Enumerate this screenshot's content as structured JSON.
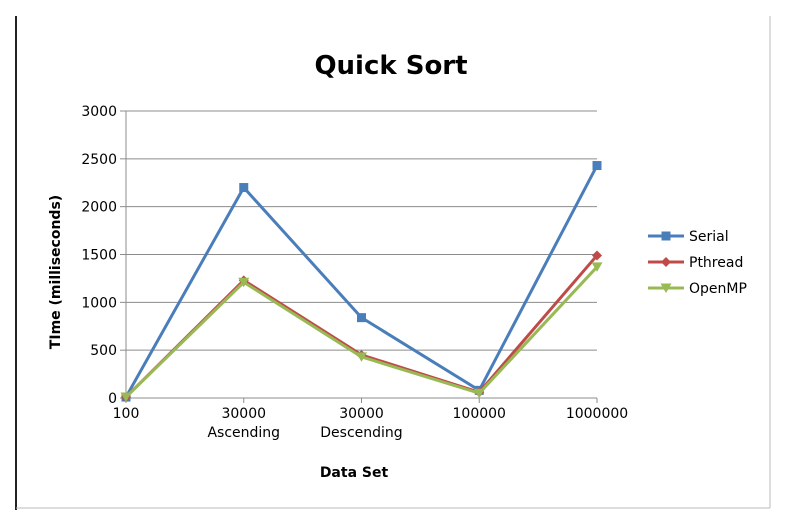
{
  "chart_data": {
    "type": "line",
    "title": "Quick Sort",
    "xlabel": "Data Set",
    "ylabel": "TIme (milliseconds)",
    "categories": [
      [
        "100"
      ],
      [
        "30000",
        "Ascending"
      ],
      [
        "30000",
        "Descending"
      ],
      [
        "100000"
      ],
      [
        "1000000"
      ]
    ],
    "ylim": [
      0,
      3000
    ],
    "yticks": [
      "0",
      "500",
      "1000",
      "1500",
      "2000",
      "2500",
      "3000"
    ],
    "grid": true,
    "legend_position": "right",
    "series": [
      {
        "name": "Serial",
        "color": "#4a7ebb",
        "marker": "square",
        "values": [
          10,
          2200,
          840,
          80,
          2430
        ]
      },
      {
        "name": "Pthread",
        "color": "#be4b48",
        "marker": "diamond",
        "values": [
          10,
          1230,
          450,
          60,
          1490
        ]
      },
      {
        "name": "OpenMP",
        "color": "#98b954",
        "marker": "triangle-down",
        "values": [
          10,
          1210,
          430,
          50,
          1370
        ]
      }
    ]
  }
}
